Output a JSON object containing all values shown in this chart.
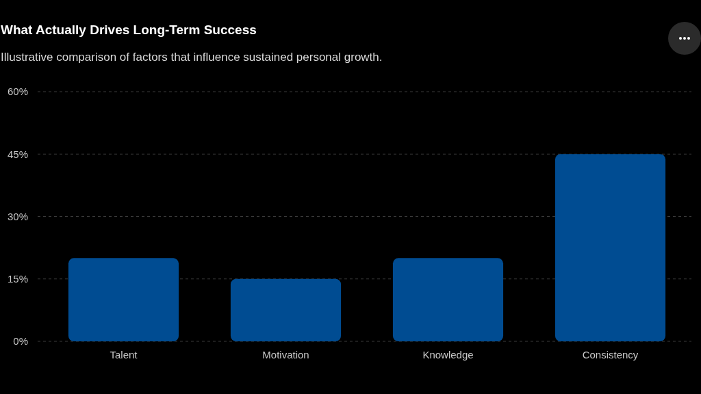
{
  "chart_data": {
    "type": "bar",
    "title": "What Actually Drives Long-Term Success",
    "subtitle": "Illustrative comparison of factors that influence sustained personal growth.",
    "categories": [
      "Talent",
      "Motivation",
      "Knowledge",
      "Consistency"
    ],
    "values": [
      20,
      15,
      20,
      45
    ],
    "color": "#004c92",
    "ylim": [
      0,
      60
    ],
    "yticks": [
      {
        "value": 0,
        "label": "0%"
      },
      {
        "value": 15,
        "label": "15%"
      },
      {
        "value": 30,
        "label": "30%"
      },
      {
        "value": 45,
        "label": "45%"
      },
      {
        "value": 60,
        "label": "60%"
      }
    ],
    "grid": "y"
  }
}
